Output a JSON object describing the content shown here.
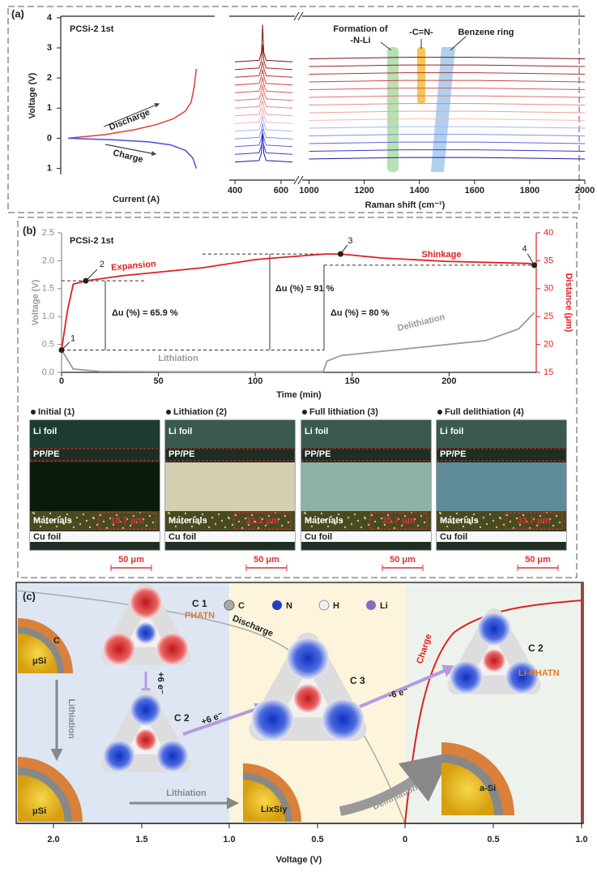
{
  "chart_data": [
    {
      "type": "line",
      "panel_label": "(a)",
      "title": "PCSi-2 1st",
      "xlabel": "Current (A)",
      "ylabel": "Voltage (V)",
      "xlim": [
        -0.05,
        1
      ],
      "ylim": [
        -1.2,
        4.05
      ],
      "yticks": [
        4,
        3,
        2,
        1,
        0,
        {
          "value": -1,
          "label": "1"
        }
      ],
      "series": [
        {
          "color": "#e23b3b",
          "x": [
            0,
            0.25,
            0.45,
            0.6,
            0.72,
            0.8,
            0.84,
            0.86,
            0.875
          ],
          "values": [
            0,
            0.12,
            0.28,
            0.45,
            0.65,
            0.9,
            1.2,
            1.7,
            2.3
          ]
        },
        {
          "color": "#4a4ae0",
          "x": [
            0,
            0.3,
            0.55,
            0.7,
            0.8,
            0.85,
            0.875
          ],
          "values": [
            0,
            -0.05,
            -0.12,
            -0.22,
            -0.4,
            -0.65,
            -1.0
          ]
        }
      ],
      "annotations": [
        "Discharge",
        "Charge"
      ]
    },
    {
      "type": "line",
      "xlabel": "Raman shift (cm⁻¹)",
      "xlim": [
        375,
        2000
      ],
      "xbreak": [
        660,
        975
      ],
      "xticks": [
        400,
        600,
        1000,
        1200,
        1400,
        1600,
        1800,
        2000
      ],
      "ylim": [
        0,
        100
      ],
      "x": [
        400,
        505,
        515,
        520,
        525,
        535,
        650,
        1000,
        1350,
        1500,
        1600,
        2000
      ],
      "series": [
        {
          "color": "#1a1aa0",
          "values": [
            8,
            9,
            14,
            29,
            14,
            9,
            8,
            10,
            11,
            11,
            11,
            10
          ]
        },
        {
          "color": "#3a3ad0",
          "values": [
            13,
            14,
            19,
            23,
            19,
            14,
            13,
            15,
            16,
            16,
            16,
            15
          ]
        },
        {
          "color": "#5a6ae0",
          "values": [
            18,
            19,
            24,
            28,
            24,
            19,
            18,
            20,
            21,
            21,
            21,
            20
          ]
        },
        {
          "color": "#7f90ea",
          "values": [
            23,
            24,
            29,
            33,
            29,
            24,
            23,
            25,
            26,
            26,
            26,
            25
          ]
        },
        {
          "color": "#a9b6f0",
          "values": [
            28,
            29,
            34,
            38,
            34,
            29,
            28,
            30,
            31,
            31,
            31,
            30
          ]
        },
        {
          "color": "#f4b8b8",
          "values": [
            33,
            34,
            39,
            43,
            39,
            34,
            33,
            35,
            36,
            36,
            36,
            35
          ]
        },
        {
          "color": "#f0a0a0",
          "values": [
            38,
            39,
            44,
            48,
            44,
            39,
            38,
            40,
            41,
            41,
            41,
            40
          ]
        },
        {
          "color": "#e88888",
          "values": [
            43,
            44,
            49,
            53,
            49,
            44,
            43,
            45,
            46,
            46,
            46,
            45
          ]
        },
        {
          "color": "#e07070",
          "values": [
            48,
            49,
            54,
            58,
            54,
            49,
            48,
            50,
            51,
            51,
            51,
            50
          ]
        },
        {
          "color": "#d85858",
          "values": [
            53,
            54,
            59,
            63,
            59,
            54,
            53,
            55,
            56,
            56,
            56,
            55
          ]
        },
        {
          "color": "#cc4444",
          "values": [
            58,
            59,
            64,
            68,
            64,
            59,
            58,
            60,
            61,
            61,
            61,
            60
          ]
        },
        {
          "color": "#b83030",
          "values": [
            63,
            64,
            69,
            73,
            69,
            64,
            63,
            65,
            66,
            66,
            66,
            65
          ]
        },
        {
          "color": "#a02020",
          "values": [
            68,
            69,
            74,
            84,
            74,
            69,
            68,
            70,
            71,
            71,
            71,
            70
          ]
        },
        {
          "color": "#7a1414",
          "values": [
            73,
            74,
            79,
            97,
            79,
            74,
            73,
            75,
            76,
            76,
            76,
            75
          ]
        }
      ],
      "annotations": [
        "Formation of",
        "-N-Li",
        "-C=N-",
        "Benzene ring"
      ]
    },
    {
      "type": "line",
      "panel_label": "(b)",
      "title": "PCSi-2 1st",
      "xlabel": "Time (min)",
      "ylabel": "Voltage (V)",
      "y2label": "Distance (μm)",
      "xlim": [
        0,
        245
      ],
      "xticks": [
        0,
        50,
        100,
        150,
        200
      ],
      "ylim": [
        0,
        2.5
      ],
      "yticks": [
        {
          "value": 0,
          "label": "0.0"
        },
        {
          "value": 0.5,
          "label": "0.5"
        },
        {
          "value": 1,
          "label": "1.0"
        },
        {
          "value": 1.5,
          "label": "1.5"
        },
        {
          "value": 2,
          "label": "2.0"
        },
        {
          "value": 2.5,
          "label": "2.5"
        }
      ],
      "y2lim": [
        15,
        40
      ],
      "y2ticks": [
        15,
        20,
        25,
        30,
        35,
        40
      ],
      "series": [
        {
          "color": "#9a9a9a",
          "x": [
            0,
            6,
            20,
            60,
            100,
            135,
            137,
            144,
            177,
            219,
            236,
            244
          ],
          "values": [
            0.4,
            0.06,
            0.015,
            0.01,
            0.01,
            0.01,
            0.2,
            0.3,
            0.42,
            0.57,
            0.78,
            1.07
          ]
        },
        {
          "color": "#e02020",
          "axis": "y2",
          "x": [
            0,
            3,
            6,
            12.5,
            31,
            73,
            100,
            110,
            136,
            144,
            165,
            198,
            242,
            244
          ],
          "values": [
            19,
            26,
            30.8,
            31.4,
            32.3,
            33.75,
            35.2,
            35.5,
            36.2,
            36.2,
            35.5,
            34.9,
            34.5,
            34.2
          ]
        }
      ],
      "points": {
        "axis": "y2",
        "x": [
          0,
          12.5,
          144,
          244
        ],
        "values": [
          19,
          31.4,
          36.2,
          34.2
        ],
        "labels": [
          "1",
          "2",
          "3",
          "4"
        ]
      },
      "annotations": [
        "Expansion",
        "Shinkage",
        "Lithiation",
        "Delithiation",
        "Δu (%) = 65.9 %",
        "Δu (%) = 91 %",
        "Δu (%) = 80 %"
      ]
    }
  ],
  "micrographs": {
    "images": [
      {
        "title": "Initial (1)",
        "thickness": "18.7 μm"
      },
      {
        "title": "Lithiation (2)",
        "thickness": "31.1 μm"
      },
      {
        "title": "Full lithiation (3)",
        "thickness": "35.7 μm"
      },
      {
        "title": "Full delithiation (4)",
        "thickness": "33.7 μm"
      }
    ],
    "li_foil": "Li foil",
    "pp_pe": "PP/PE",
    "materials": "Materials",
    "cu_foil": "Cu foil",
    "scale_bar": "50 μm"
  },
  "panel_c": {
    "label": "(c)",
    "atoms": [
      "C",
      "N",
      "H",
      "Li"
    ],
    "c1": "C 1",
    "c2": "C 2",
    "c3": "C 3",
    "phatn": "PHATN",
    "li_phatn": "Li-PHATN",
    "discharge": "Discharge",
    "charge": "Charge",
    "minus6e": "-6 e⁻",
    "plus6e": "+6 e⁻",
    "carbon": "C",
    "usi": "μSi",
    "lithiation": "Lithiation",
    "lixsiy": "LixSiy",
    "delithiation": "Delithiation",
    "asi": "a-Si",
    "xticks": [
      "2.0",
      "1.5",
      "1.0",
      "0.5",
      "0",
      "0.5",
      "1.0"
    ],
    "xlabel": "Voltage (V)"
  }
}
